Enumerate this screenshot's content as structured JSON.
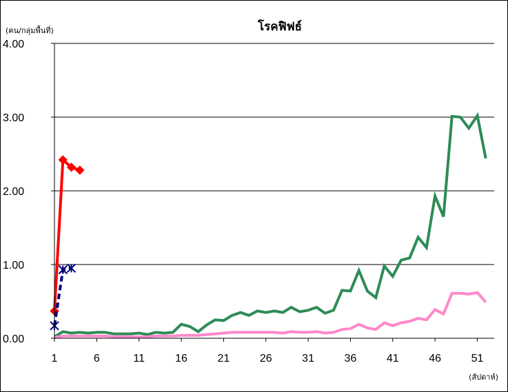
{
  "chart_data": {
    "type": "line",
    "title": "โรคฟิฟธ์",
    "ylabel": "(คน/กลุ่มพื้นที่)",
    "xlabel": "(สัปดาห์)",
    "ylim": [
      0,
      4
    ],
    "xlim": [
      1,
      53
    ],
    "y_ticks": [
      "0.00",
      "1.00",
      "2.00",
      "3.00",
      "4.00"
    ],
    "x_ticks": [
      "1",
      "6",
      "11",
      "16",
      "21",
      "26",
      "31",
      "36",
      "41",
      "46",
      "51"
    ],
    "grid": "horizontal",
    "legend": "none",
    "series": [
      {
        "color": "#2e8b57",
        "marker": "none",
        "dashed": false,
        "x": [
          1,
          2,
          3,
          4,
          5,
          6,
          7,
          8,
          9,
          10,
          11,
          12,
          13,
          14,
          15,
          16,
          17,
          18,
          19,
          20,
          21,
          22,
          23,
          24,
          25,
          26,
          27,
          28,
          29,
          30,
          31,
          32,
          33,
          34,
          35,
          36,
          37,
          38,
          39,
          40,
          41,
          42,
          43,
          44,
          45,
          46,
          47,
          48,
          49,
          50,
          51,
          52
        ],
        "y": [
          0.02,
          0.09,
          0.07,
          0.08,
          0.07,
          0.08,
          0.08,
          0.06,
          0.06,
          0.06,
          0.07,
          0.05,
          0.08,
          0.07,
          0.08,
          0.19,
          0.16,
          0.09,
          0.18,
          0.25,
          0.24,
          0.31,
          0.35,
          0.31,
          0.37,
          0.35,
          0.37,
          0.35,
          0.42,
          0.36,
          0.38,
          0.42,
          0.34,
          0.38,
          0.65,
          0.64,
          0.92,
          0.64,
          0.55,
          0.98,
          0.84,
          1.06,
          1.09,
          1.37,
          1.23,
          1.93,
          1.65,
          3.01,
          3.0,
          2.85,
          3.02,
          2.44
        ]
      },
      {
        "color": "#ff88cc",
        "marker": "none",
        "dashed": false,
        "x": [
          1,
          2,
          3,
          4,
          5,
          6,
          7,
          8,
          9,
          10,
          11,
          12,
          13,
          14,
          15,
          16,
          17,
          18,
          19,
          20,
          21,
          22,
          23,
          24,
          25,
          26,
          27,
          28,
          29,
          30,
          31,
          32,
          33,
          34,
          35,
          36,
          37,
          38,
          39,
          40,
          41,
          42,
          43,
          44,
          45,
          46,
          47,
          48,
          49,
          50,
          51,
          52
        ],
        "y": [
          0.01,
          0.03,
          0.03,
          0.03,
          0.03,
          0.03,
          0.03,
          0.02,
          0.02,
          0.02,
          0.02,
          0.02,
          0.03,
          0.03,
          0.03,
          0.04,
          0.04,
          0.04,
          0.05,
          0.06,
          0.07,
          0.08,
          0.08,
          0.08,
          0.08,
          0.08,
          0.08,
          0.07,
          0.09,
          0.08,
          0.08,
          0.09,
          0.07,
          0.08,
          0.12,
          0.13,
          0.19,
          0.14,
          0.12,
          0.21,
          0.17,
          0.21,
          0.23,
          0.27,
          0.25,
          0.39,
          0.33,
          0.61,
          0.61,
          0.6,
          0.62,
          0.49
        ]
      },
      {
        "color": "#ff0000",
        "marker": "diamond",
        "dashed": false,
        "x": [
          1,
          2,
          3,
          4
        ],
        "y": [
          0.37,
          2.42,
          2.32,
          2.28
        ]
      },
      {
        "color": "#000080",
        "marker": "asterisk",
        "dashed": true,
        "x": [
          1,
          2,
          3
        ],
        "y": [
          0.17,
          0.93,
          0.95
        ]
      }
    ]
  }
}
